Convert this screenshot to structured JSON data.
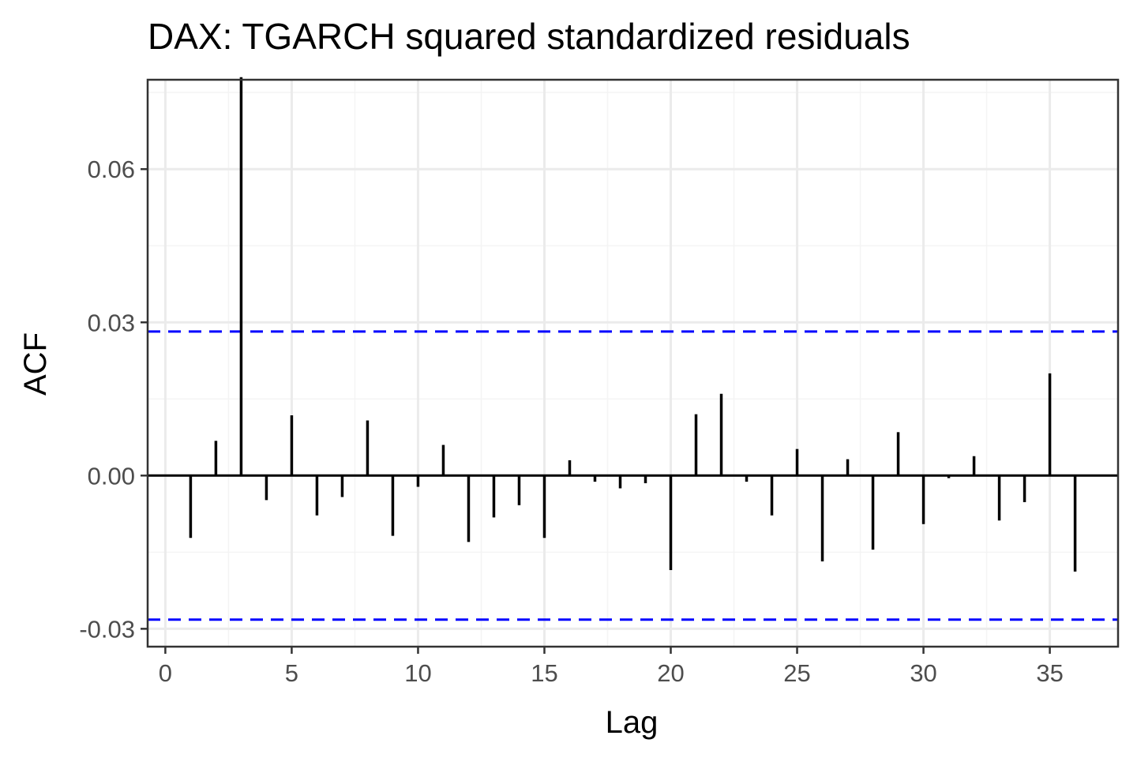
{
  "chart_data": {
    "type": "bar",
    "subtype": "acf-lollipop",
    "title": "DAX: TGARCH squared standardized residuals",
    "xlabel": "Lag",
    "ylabel": "ACF",
    "xlim": [
      -0.7,
      37.7
    ],
    "ylim": [
      -0.0335,
      0.0775
    ],
    "x_ticks": [
      0,
      5,
      10,
      15,
      20,
      25,
      30,
      35
    ],
    "x_tick_labels": [
      "0",
      "5",
      "10",
      "15",
      "20",
      "25",
      "30",
      "35"
    ],
    "y_ticks": [
      -0.03,
      0.0,
      0.03,
      0.06
    ],
    "y_tick_labels": [
      "-0.03",
      "0.00",
      "0.03",
      "0.06"
    ],
    "y_minor_ticks": [
      -0.015,
      0.015,
      0.045,
      0.075
    ],
    "x_minor_ticks": [
      2.5,
      7.5,
      12.5,
      17.5,
      22.5,
      27.5,
      32.5
    ],
    "grid": true,
    "legend": "none",
    "series": [
      {
        "lags": [
          1,
          2,
          3,
          4,
          5,
          6,
          7,
          8,
          9,
          10,
          11,
          12,
          13,
          14,
          15,
          16,
          17,
          18,
          19,
          20,
          21,
          22,
          23,
          24,
          25,
          26,
          27,
          28,
          29,
          30,
          31,
          32,
          33,
          34,
          35,
          36
        ],
        "values": [
          -0.0122,
          0.0068,
          0.078,
          -0.0048,
          0.0118,
          -0.0078,
          -0.0042,
          0.0108,
          -0.0118,
          -0.0022,
          0.006,
          -0.013,
          -0.0082,
          -0.0058,
          -0.0122,
          0.003,
          -0.0012,
          -0.0025,
          -0.0015,
          -0.0185,
          0.012,
          0.016,
          -0.0012,
          -0.0078,
          0.0052,
          -0.0168,
          0.0032,
          -0.0145,
          0.0085,
          -0.0095,
          -0.0005,
          0.0038,
          -0.0088,
          -0.0052,
          0.02,
          -0.0188
        ]
      }
    ],
    "confidence_bands": [
      0.0282,
      -0.0282
    ],
    "colors": {
      "bars": "#000000",
      "zero_line": "#000000",
      "bands": "#0000ff",
      "grid_major": "#ebebeb",
      "grid_minor": "#f4f4f4",
      "panel_border": "#333333",
      "tick_text": "#4d4d4d"
    }
  }
}
